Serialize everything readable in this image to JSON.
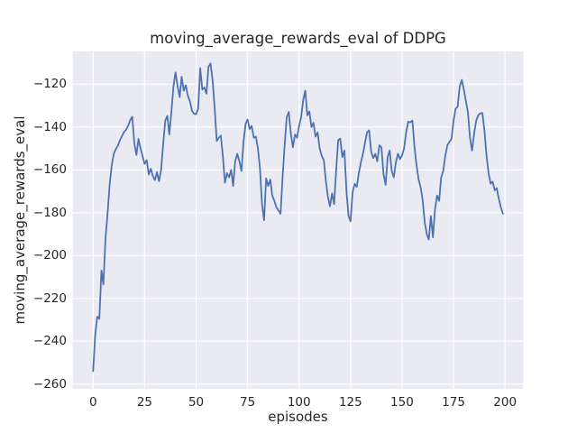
{
  "figure": {
    "background": "#ffffff",
    "plot_background": "#eaeaf2",
    "grid_color": "#ffffff",
    "text_color": "#262626"
  },
  "chart_data": {
    "type": "line",
    "title": "moving_average_rewards_eval of DDPG",
    "xlabel": "episodes",
    "ylabel": "moving_average_rewards_eval",
    "grid": true,
    "legend_position": "none",
    "x_start": 0,
    "x_step": 1,
    "xticks": [
      0,
      25,
      50,
      75,
      100,
      125,
      150,
      175,
      200
    ],
    "yticks": [
      -120,
      -140,
      -160,
      -180,
      -200,
      -220,
      -240,
      -260
    ],
    "xlim": [
      -9.95,
      208.95
    ],
    "ylim": [
      -262.2,
      -104.7
    ],
    "series": [
      {
        "name": "DDPG",
        "color": "#4c72b0",
        "line_width": 1.8,
        "values": [
          -254,
          -237,
          -228.5,
          -229.5,
          -207,
          -213.5,
          -192,
          -180.5,
          -167,
          -158,
          -152.5,
          -150.3,
          -148.8,
          -146.2,
          -144.2,
          -142.3,
          -141.2,
          -139.3,
          -136.8,
          -135.2,
          -147.5,
          -153,
          -145.5,
          -150,
          -153.5,
          -157.2,
          -155.4,
          -162.2,
          -159.5,
          -163,
          -164.8,
          -161,
          -165.3,
          -160,
          -148,
          -137,
          -134.8,
          -143.5,
          -133,
          -121,
          -114.5,
          -121,
          -126,
          -116.5,
          -123,
          -120.5,
          -125.5,
          -128,
          -132.5,
          -133.8,
          -134,
          -131.5,
          -112.5,
          -122.5,
          -121.5,
          -124.5,
          -112,
          -110.3,
          -118,
          -131,
          -146.5,
          -145,
          -144,
          -153.5,
          -166,
          -161.5,
          -163.5,
          -160,
          -167.5,
          -156,
          -152.5,
          -156,
          -160.5,
          -147,
          -138.5,
          -136.5,
          -141,
          -139.5,
          -145,
          -144.5,
          -150,
          -159,
          -176,
          -183.5,
          -164,
          -167.5,
          -164.5,
          -172,
          -174.5,
          -177.5,
          -179,
          -180.5,
          -163,
          -148,
          -135.5,
          -133,
          -143,
          -149.5,
          -143.5,
          -145,
          -139.5,
          -135.5,
          -127.5,
          -123,
          -134.5,
          -132.8,
          -140,
          -138,
          -144.5,
          -142.5,
          -150,
          -153.5,
          -155.5,
          -165,
          -172.5,
          -177,
          -171,
          -176,
          -160,
          -146.2,
          -145.4,
          -154,
          -151,
          -170,
          -181.5,
          -184,
          -170.5,
          -166.5,
          -168,
          -161.5,
          -156.5,
          -152.5,
          -147.5,
          -142.5,
          -141.5,
          -151.5,
          -154.5,
          -152.5,
          -156,
          -148.5,
          -149.5,
          -162,
          -167,
          -154,
          -151,
          -160.5,
          -163.5,
          -156.5,
          -152.5,
          -155,
          -153.2,
          -150,
          -142.5,
          -137.5,
          -137.8,
          -137,
          -149,
          -157.5,
          -164.3,
          -168,
          -174,
          -184.5,
          -190,
          -192.5,
          -181.5,
          -191.5,
          -178.5,
          -172,
          -174.5,
          -163.5,
          -160.5,
          -153.5,
          -148.5,
          -147,
          -145.5,
          -137,
          -131.5,
          -130.5,
          -121,
          -118,
          -122.5,
          -128,
          -133,
          -145,
          -151,
          -143,
          -137,
          -134.5,
          -133.6,
          -133.4,
          -141.5,
          -153,
          -161.5,
          -166.5,
          -165.5,
          -169.5,
          -168.5,
          -173.5,
          -177.5,
          -180.5
        ]
      }
    ]
  }
}
